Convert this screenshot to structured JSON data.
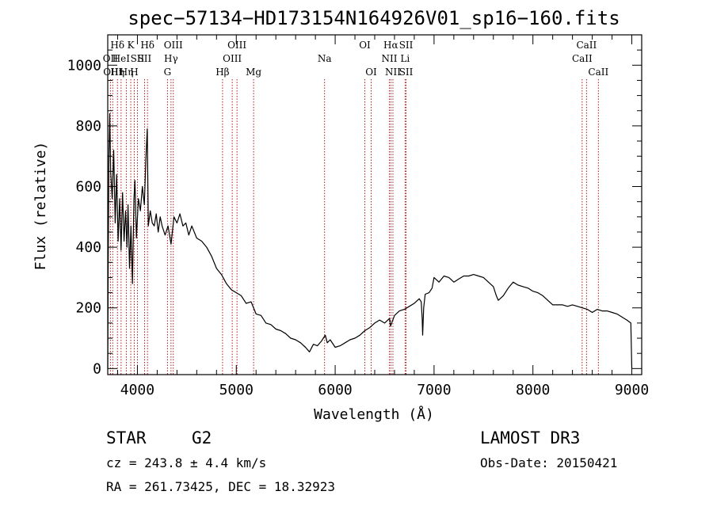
{
  "chart_data": {
    "type": "line",
    "title": "spec−57134−HD173154N164926V01_sp16−160.fits",
    "xlabel": "Wavelength (Å)",
    "ylabel": "Flux (relative)",
    "xlim": [
      3700,
      9100
    ],
    "ylim": [
      -20,
      1100
    ],
    "x_ticks": [
      4000,
      5000,
      6000,
      7000,
      8000,
      9000
    ],
    "y_ticks": [
      0,
      200,
      400,
      600,
      800,
      1000
    ],
    "series": [
      {
        "name": "flux",
        "points": [
          [
            3700,
            0
          ],
          [
            3705,
            350
          ],
          [
            3712,
            700
          ],
          [
            3720,
            840
          ],
          [
            3730,
            650
          ],
          [
            3745,
            560
          ],
          [
            3760,
            720
          ],
          [
            3775,
            480
          ],
          [
            3790,
            640
          ],
          [
            3805,
            420
          ],
          [
            3820,
            560
          ],
          [
            3835,
            390
          ],
          [
            3850,
            580
          ],
          [
            3865,
            420
          ],
          [
            3880,
            520
          ],
          [
            3895,
            400
          ],
          [
            3905,
            540
          ],
          [
            3920,
            330
          ],
          [
            3935,
            470
          ],
          [
            3950,
            280
          ],
          [
            3965,
            560
          ],
          [
            3975,
            620
          ],
          [
            3990,
            430
          ],
          [
            4010,
            560
          ],
          [
            4030,
            520
          ],
          [
            4050,
            600
          ],
          [
            4070,
            540
          ],
          [
            4085,
            690
          ],
          [
            4100,
            790
          ],
          [
            4110,
            470
          ],
          [
            4130,
            520
          ],
          [
            4150,
            480
          ],
          [
            4170,
            470
          ],
          [
            4190,
            510
          ],
          [
            4210,
            450
          ],
          [
            4230,
            500
          ],
          [
            4250,
            470
          ],
          [
            4280,
            440
          ],
          [
            4310,
            470
          ],
          [
            4340,
            410
          ],
          [
            4370,
            500
          ],
          [
            4400,
            480
          ],
          [
            4430,
            510
          ],
          [
            4460,
            470
          ],
          [
            4490,
            480
          ],
          [
            4520,
            440
          ],
          [
            4550,
            470
          ],
          [
            4600,
            430
          ],
          [
            4650,
            420
          ],
          [
            4700,
            400
          ],
          [
            4750,
            370
          ],
          [
            4800,
            330
          ],
          [
            4850,
            310
          ],
          [
            4900,
            280
          ],
          [
            4950,
            260
          ],
          [
            5000,
            250
          ],
          [
            5050,
            240
          ],
          [
            5100,
            215
          ],
          [
            5150,
            220
          ],
          [
            5200,
            180
          ],
          [
            5250,
            175
          ],
          [
            5300,
            150
          ],
          [
            5350,
            145
          ],
          [
            5400,
            130
          ],
          [
            5450,
            125
          ],
          [
            5500,
            115
          ],
          [
            5550,
            100
          ],
          [
            5600,
            95
          ],
          [
            5650,
            85
          ],
          [
            5700,
            70
          ],
          [
            5740,
            55
          ],
          [
            5780,
            80
          ],
          [
            5820,
            75
          ],
          [
            5860,
            90
          ],
          [
            5880,
            100
          ],
          [
            5900,
            110
          ],
          [
            5920,
            85
          ],
          [
            5950,
            95
          ],
          [
            6000,
            70
          ],
          [
            6050,
            75
          ],
          [
            6100,
            85
          ],
          [
            6150,
            95
          ],
          [
            6200,
            100
          ],
          [
            6250,
            110
          ],
          [
            6300,
            125
          ],
          [
            6350,
            135
          ],
          [
            6400,
            150
          ],
          [
            6450,
            160
          ],
          [
            6500,
            150
          ],
          [
            6550,
            165
          ],
          [
            6560,
            140
          ],
          [
            6600,
            175
          ],
          [
            6650,
            190
          ],
          [
            6700,
            195
          ],
          [
            6750,
            205
          ],
          [
            6800,
            215
          ],
          [
            6850,
            230
          ],
          [
            6870,
            220
          ],
          [
            6880,
            165
          ],
          [
            6885,
            110
          ],
          [
            6895,
            200
          ],
          [
            6910,
            245
          ],
          [
            6950,
            250
          ],
          [
            6980,
            265
          ],
          [
            7000,
            300
          ],
          [
            7050,
            285
          ],
          [
            7100,
            305
          ],
          [
            7150,
            300
          ],
          [
            7200,
            285
          ],
          [
            7250,
            295
          ],
          [
            7300,
            305
          ],
          [
            7350,
            305
          ],
          [
            7400,
            310
          ],
          [
            7450,
            305
          ],
          [
            7500,
            300
          ],
          [
            7550,
            285
          ],
          [
            7600,
            270
          ],
          [
            7630,
            240
          ],
          [
            7650,
            225
          ],
          [
            7700,
            240
          ],
          [
            7750,
            265
          ],
          [
            7800,
            285
          ],
          [
            7850,
            275
          ],
          [
            7900,
            270
          ],
          [
            7950,
            265
          ],
          [
            8000,
            255
          ],
          [
            8050,
            250
          ],
          [
            8100,
            240
          ],
          [
            8150,
            225
          ],
          [
            8200,
            210
          ],
          [
            8250,
            210
          ],
          [
            8300,
            210
          ],
          [
            8350,
            205
          ],
          [
            8400,
            210
          ],
          [
            8450,
            205
          ],
          [
            8500,
            200
          ],
          [
            8550,
            195
          ],
          [
            8600,
            185
          ],
          [
            8650,
            195
          ],
          [
            8700,
            190
          ],
          [
            8750,
            190
          ],
          [
            8800,
            185
          ],
          [
            8850,
            180
          ],
          [
            8900,
            170
          ],
          [
            8950,
            160
          ],
          [
            8990,
            150
          ],
          [
            9000,
            0
          ]
        ]
      }
    ],
    "line_markers": [
      {
        "wl": 3727,
        "labels": [
          "",
          "OII"
        ]
      },
      {
        "wl": 3750,
        "labels": [
          "",
          "",
          "OIII"
        ]
      },
      {
        "wl": 3798,
        "labels": [
          "Hδ",
          "",
          "Hη"
        ]
      },
      {
        "wl": 3835,
        "labels": [
          "",
          "HeI",
          ""
        ]
      },
      {
        "wl": 3889,
        "labels": [
          "",
          "",
          "Hη"
        ]
      },
      {
        "wl": 3933,
        "labels": [
          "K",
          "",
          ""
        ]
      },
      {
        "wl": 3968,
        "labels": [
          "",
          "",
          "H"
        ]
      },
      {
        "wl": 4000,
        "labels": [
          "",
          "SII",
          ""
        ]
      },
      {
        "wl": 4072,
        "labels": [
          "",
          "SII",
          ""
        ]
      },
      {
        "wl": 4102,
        "labels": [
          "Hδ",
          "",
          ""
        ]
      },
      {
        "wl": 4304,
        "labels": [
          "",
          "",
          "G"
        ]
      },
      {
        "wl": 4340,
        "labels": [
          "",
          "Hγ",
          ""
        ]
      },
      {
        "wl": 4363,
        "labels": [
          "OIII",
          "",
          ""
        ]
      },
      {
        "wl": 4861,
        "labels": [
          "",
          "",
          "Hβ"
        ]
      },
      {
        "wl": 4959,
        "labels": [
          "",
          "OIII",
          ""
        ]
      },
      {
        "wl": 5007,
        "labels": [
          "OIII",
          "",
          ""
        ]
      },
      {
        "wl": 5175,
        "labels": [
          "",
          "",
          "Mg"
        ]
      },
      {
        "wl": 5893,
        "labels": [
          "",
          "Na",
          ""
        ]
      },
      {
        "wl": 6300,
        "labels": [
          "OI",
          "",
          ""
        ]
      },
      {
        "wl": 6364,
        "labels": [
          "",
          "",
          "OI"
        ]
      },
      {
        "wl": 6548,
        "labels": [
          "",
          "NII",
          ""
        ]
      },
      {
        "wl": 6563,
        "labels": [
          "Hα",
          "",
          ""
        ]
      },
      {
        "wl": 6584,
        "labels": [
          "",
          "",
          "NII"
        ]
      },
      {
        "wl": 6707,
        "labels": [
          "",
          "Li",
          ""
        ]
      },
      {
        "wl": 6717,
        "labels": [
          "SII",
          "",
          "SII"
        ]
      },
      {
        "wl": 8498,
        "labels": [
          "",
          "CaII",
          ""
        ]
      },
      {
        "wl": 8542,
        "labels": [
          "CaII",
          "",
          ""
        ]
      },
      {
        "wl": 8662,
        "labels": [
          "",
          "",
          "CaII"
        ]
      }
    ]
  },
  "info": {
    "object_class": "STAR",
    "subclass": "G2",
    "survey": "LAMOST DR3",
    "cz": "cz = 243.8 ± 4.4 km/s",
    "obs_date": "Obs-Date: 20150421",
    "coords": "RA = 261.73425, DEC =  18.32923"
  }
}
